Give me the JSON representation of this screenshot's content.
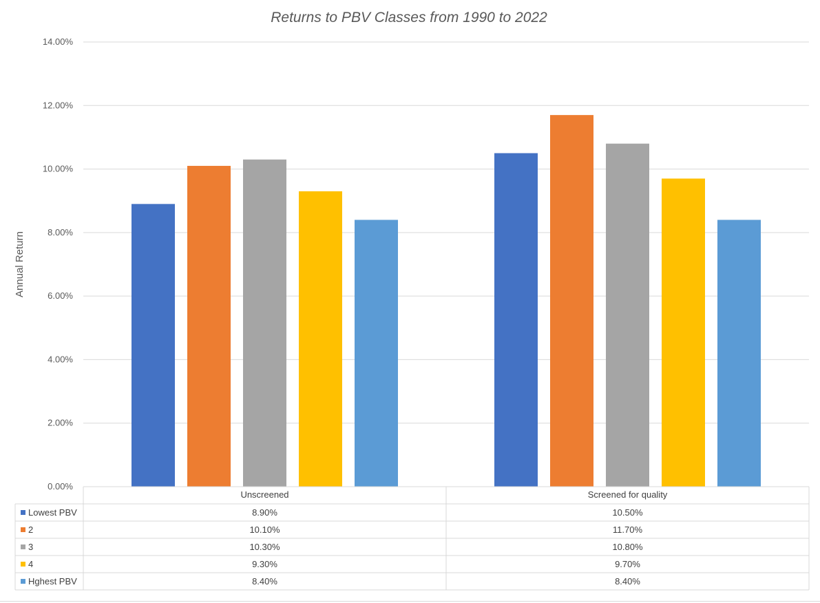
{
  "chart_data": {
    "type": "bar",
    "title": "Returns to PBV Classes from 1990 to 2022",
    "xlabel": "",
    "ylabel": "Annual Return",
    "ylim": [
      0,
      14
    ],
    "y_ticks": [
      "0.00%",
      "2.00%",
      "4.00%",
      "6.00%",
      "8.00%",
      "10.00%",
      "12.00%",
      "14.00%"
    ],
    "categories": [
      "Unscreened",
      "Screened for quality"
    ],
    "value_format": "percent",
    "grid": true,
    "legend": "data-table",
    "series": [
      {
        "name": "Lowest PBV",
        "color": "#4472C4",
        "values": [
          8.9,
          10.5
        ],
        "labels": [
          "8.90%",
          "10.50%"
        ]
      },
      {
        "name": "2",
        "color": "#ED7D31",
        "values": [
          10.1,
          11.7
        ],
        "labels": [
          "10.10%",
          "11.70%"
        ]
      },
      {
        "name": "3",
        "color": "#A5A5A5",
        "values": [
          10.3,
          10.8
        ],
        "labels": [
          "10.30%",
          "10.80%"
        ]
      },
      {
        "name": "4",
        "color": "#FFC000",
        "values": [
          9.3,
          9.7
        ],
        "labels": [
          "9.30%",
          "9.70%"
        ]
      },
      {
        "name": "Hghest PBV",
        "color": "#5B9BD5",
        "values": [
          8.4,
          8.4
        ],
        "labels": [
          "8.40%",
          "8.40%"
        ]
      }
    ]
  }
}
